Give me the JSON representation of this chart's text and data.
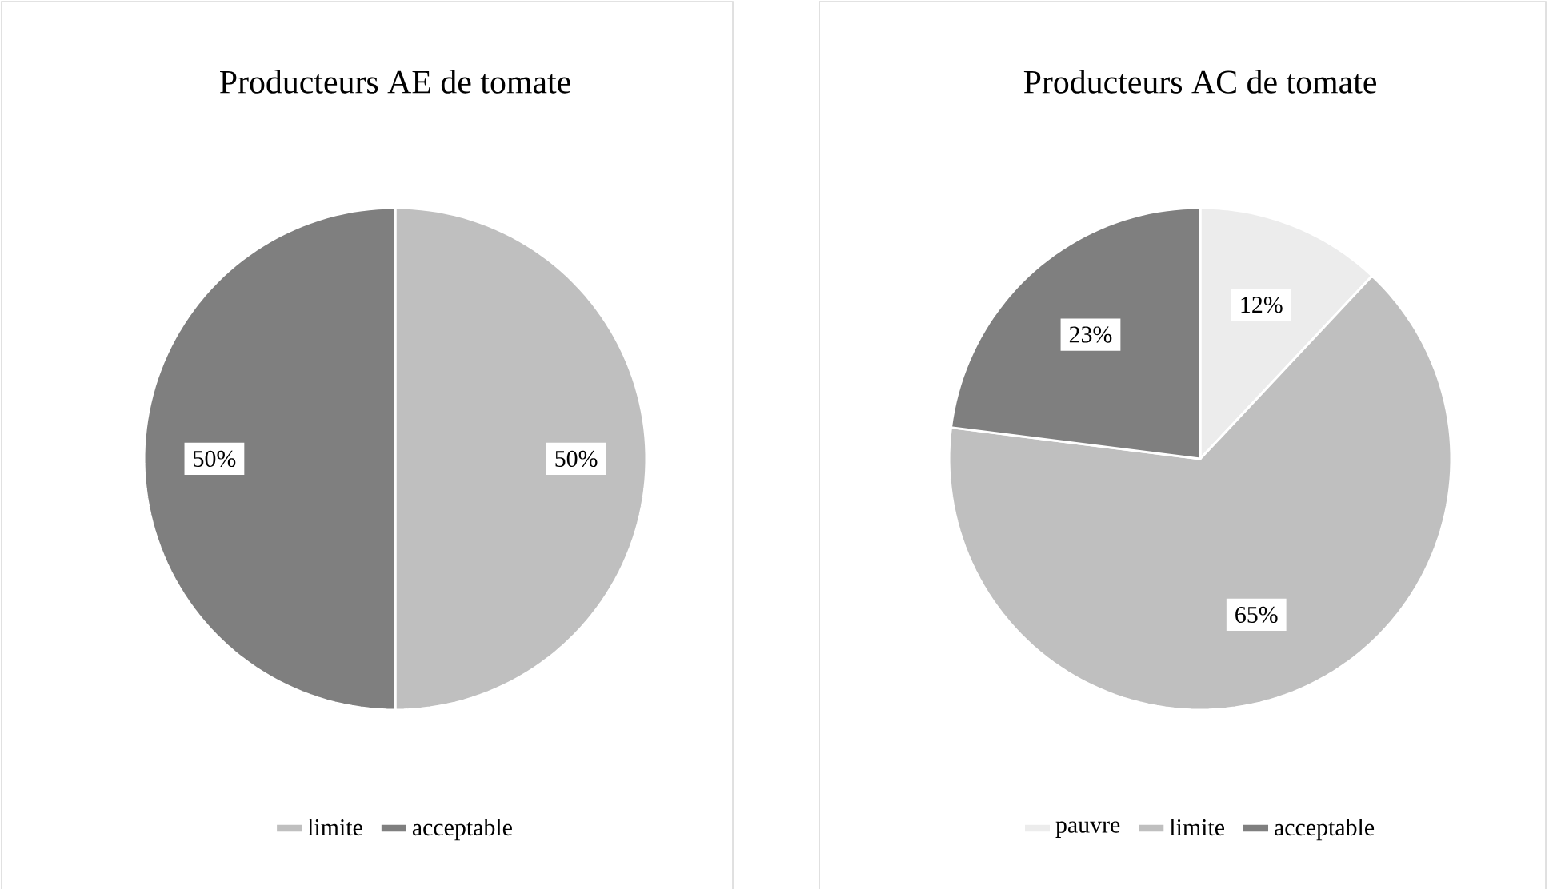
{
  "chart_data": [
    {
      "type": "pie",
      "title": "Producteurs AE de tomate",
      "categories": [
        "limite",
        "acceptable"
      ],
      "values": [
        50,
        50
      ],
      "colors": [
        "#bfbfbf",
        "#7f7f7f"
      ],
      "value_labels": [
        "50%",
        "50%"
      ],
      "legend": "bottom"
    },
    {
      "type": "pie",
      "title": "Producteurs AC de tomate",
      "categories": [
        "pauvre",
        "limite",
        "acceptable"
      ],
      "values": [
        12,
        65,
        23
      ],
      "colors": [
        "#ececec",
        "#bfbfbf",
        "#7f7f7f"
      ],
      "value_labels": [
        "12%",
        "65%",
        "23%"
      ],
      "legend": "bottom"
    }
  ]
}
